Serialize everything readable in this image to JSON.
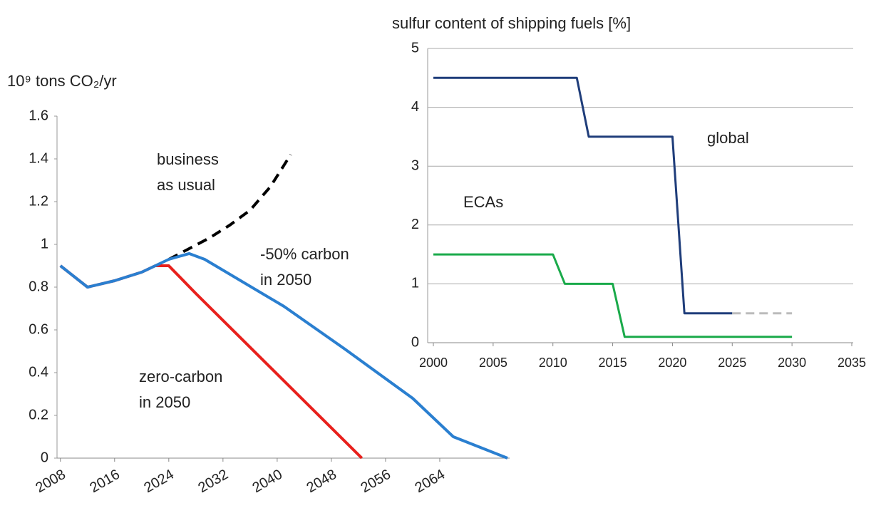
{
  "chart_data": [
    {
      "type": "line",
      "ylabel": "10⁹ tons CO₂/yr",
      "xlim": [
        2007.5,
        2074
      ],
      "xticks": [
        2008,
        2016,
        2024,
        2032,
        2040,
        2048,
        2056,
        2064
      ],
      "ylim": [
        0,
        1.6
      ],
      "yticks": [
        0,
        0.2,
        0.4,
        0.6,
        0.8,
        1,
        1.2,
        1.4,
        1.6
      ],
      "grid": false,
      "series": [
        {
          "color": "#e8201c",
          "dash": false,
          "x": [
            2008,
            2012,
            2016,
            2020,
            2022,
            2024,
            2028,
            2052.5
          ],
          "values": [
            0.9,
            0.8,
            0.83,
            0.87,
            0.9,
            0.9,
            0.77,
            0
          ]
        },
        {
          "color": "#000000",
          "dash": true,
          "x": [
            2024,
            2027,
            2030,
            2033,
            2036,
            2039,
            2042
          ],
          "values": [
            0.93,
            0.98,
            1.03,
            1.09,
            1.16,
            1.27,
            1.42
          ]
        },
        {
          "color": "#2a7fd0",
          "dash": false,
          "x": [
            2008,
            2012,
            2016,
            2020,
            2024,
            2027,
            2029.3,
            2041,
            2050,
            2060,
            2066,
            2074
          ],
          "values": [
            0.9,
            0.8,
            0.83,
            0.87,
            0.93,
            0.957,
            0.93,
            0.71,
            0.51,
            0.28,
            0.1,
            0
          ]
        }
      ],
      "annotations": [
        [
          "business",
          "as usual"
        ],
        [
          "-50% carbon",
          "in 2050"
        ],
        [
          "zero-carbon",
          "in 2050"
        ]
      ]
    },
    {
      "type": "line",
      "title": "sulfur content of shipping fuels [%]",
      "xlim": [
        2000,
        2035
      ],
      "xticks": [
        2000,
        2005,
        2010,
        2015,
        2020,
        2025,
        2030,
        2035
      ],
      "ylim": [
        0,
        5
      ],
      "yticks": [
        0,
        1,
        2,
        3,
        4,
        5
      ],
      "grid": true,
      "series": [
        {
          "color": "#1f3d7a",
          "dash": false,
          "x": [
            2000,
            2012,
            2013,
            2020,
            2021,
            2025
          ],
          "values": [
            4.5,
            4.5,
            3.5,
            3.5,
            0.5,
            0.5
          ]
        },
        {
          "color": "#bbbbbb",
          "dash": true,
          "x": [
            2025,
            2030
          ],
          "values": [
            0.5,
            0.5
          ]
        },
        {
          "color": "#1aaa4a",
          "dash": false,
          "x": [
            2000,
            2010,
            2011,
            2015,
            2016,
            2030
          ],
          "values": [
            1.5,
            1.5,
            1,
            1,
            0.1,
            0.1
          ]
        }
      ],
      "annotations": [
        [
          "global"
        ],
        [
          "ECAs"
        ]
      ]
    }
  ]
}
